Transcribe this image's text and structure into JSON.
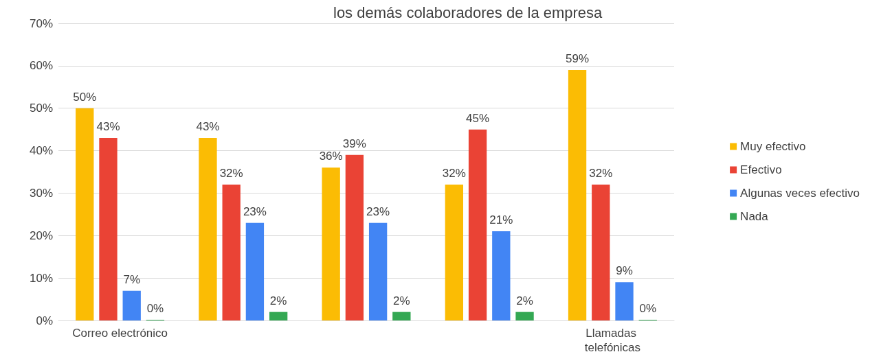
{
  "chart_data": {
    "type": "bar",
    "title": "los demás colaboradores de la empresa",
    "categories": [
      "Correo electrónico",
      null,
      null,
      null,
      "Llamadas telefónicas"
    ],
    "series": [
      {
        "name": "Muy efectivo",
        "color": "#fbbc04",
        "values": [
          50,
          43,
          36,
          32,
          59
        ],
        "value_labels": [
          "50%",
          "43%",
          "36%",
          "32%",
          "59%"
        ]
      },
      {
        "name": "Efectivo",
        "color": "#ea4335",
        "values": [
          43,
          32,
          39,
          45,
          32
        ],
        "value_labels": [
          "43%",
          "32%",
          "39%",
          "45%",
          "32%"
        ]
      },
      {
        "name": "Algunas veces efectivo",
        "color": "#4285f4",
        "values": [
          7,
          23,
          23,
          21,
          9
        ],
        "value_labels": [
          "7%",
          "23%",
          "23%",
          "21%",
          "9%"
        ]
      },
      {
        "name": "Nada",
        "color": "#34a853",
        "values": [
          0,
          2,
          2,
          2,
          0
        ],
        "value_labels": [
          "0%",
          "2%",
          "2%",
          "2%",
          "0%"
        ]
      }
    ],
    "ylim": [
      0,
      70
    ],
    "yticks": [
      {
        "value": 0,
        "label": "0%"
      },
      {
        "value": 10,
        "label": "10%"
      },
      {
        "value": 20,
        "label": "20%"
      },
      {
        "value": 30,
        "label": "30%"
      },
      {
        "value": 40,
        "label": "40%"
      },
      {
        "value": 50,
        "label": "50%"
      },
      {
        "value": 60,
        "label": "60%"
      },
      {
        "value": 70,
        "label": "70%"
      }
    ],
    "grid": "y",
    "legend": "right"
  }
}
